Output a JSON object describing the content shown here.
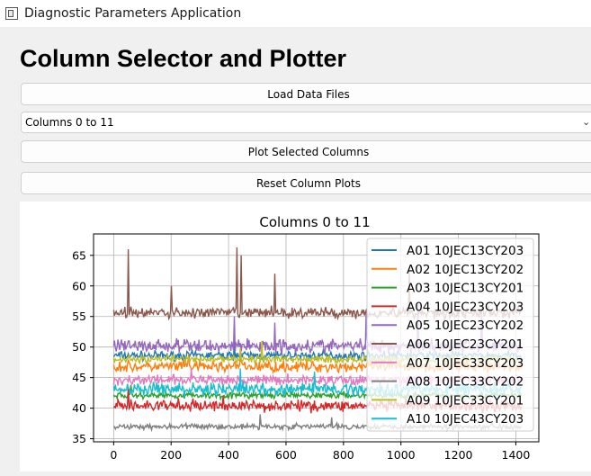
{
  "window": {
    "title": "Diagnostic Parameters Application",
    "icon": "app-window-icon"
  },
  "page": {
    "heading": "Column Selector and Plotter"
  },
  "buttons": {
    "load": "Load Data Files",
    "plot": "Plot Selected Columns",
    "reset": "Reset Column Plots"
  },
  "selector": {
    "value": "Columns 0 to 11",
    "icon": "chevron-down-icon"
  },
  "chart_data": {
    "type": "line",
    "title": "Columns 0 to 11",
    "xlabel": "",
    "ylabel": "",
    "xlim": [
      -70,
      1480
    ],
    "ylim": [
      34.5,
      68.5
    ],
    "x_ticks": [
      0,
      200,
      400,
      600,
      800,
      1000,
      1200,
      1400
    ],
    "y_ticks": [
      35,
      40,
      45,
      50,
      55,
      60,
      65
    ],
    "grid": true,
    "legend_position": "upper-right",
    "x_range": [
      0,
      1420
    ],
    "series": [
      {
        "name": "A01 10JEC13CY203",
        "color": "#1f77b4",
        "base": 48.6,
        "noise": 0.7,
        "spikes": [
          [
            420,
            51.5
          ]
        ]
      },
      {
        "name": "A02 10JEC13CY202",
        "color": "#ff7f0e",
        "base": 46.8,
        "noise": 0.9,
        "spikes": [
          [
            260,
            48.8
          ],
          [
            440,
            49.0
          ]
        ]
      },
      {
        "name": "A03 10JEC13CY201",
        "color": "#2ca02c",
        "base": 42.1,
        "noise": 0.5,
        "spikes": [
          [
            60,
            43.8
          ]
        ]
      },
      {
        "name": "A04 10JEC23CY203",
        "color": "#d62728",
        "base": 40.4,
        "noise": 0.9,
        "spikes": [
          [
            50,
            43.5
          ],
          [
            380,
            42.0
          ]
        ]
      },
      {
        "name": "A05 10JEC23CY202",
        "color": "#9467bd",
        "base": 50.2,
        "noise": 1.1,
        "spikes": [
          [
            420,
            55.0
          ],
          [
            560,
            54.0
          ],
          [
            880,
            56.0
          ],
          [
            1060,
            57.0
          ],
          [
            1280,
            56.5
          ]
        ]
      },
      {
        "name": "A06 10JEC23CY201",
        "color": "#8c564b",
        "base": 55.6,
        "noise": 0.9,
        "spikes": [
          [
            50,
            66.0
          ],
          [
            200,
            60.0
          ],
          [
            430,
            66.3
          ],
          [
            445,
            65.0
          ],
          [
            560,
            62.0
          ],
          [
            1030,
            62.5
          ]
        ]
      },
      {
        "name": "A07 10JEC33CY203",
        "color": "#e377c2",
        "base": 44.6,
        "noise": 0.8,
        "spikes": [
          [
            270,
            46.5
          ]
        ]
      },
      {
        "name": "A08 10JEC33CY202",
        "color": "#7f7f7f",
        "base": 37.0,
        "noise": 0.45,
        "spikes": [
          [
            510,
            39.0
          ],
          [
            760,
            38.5
          ]
        ]
      },
      {
        "name": "A09 10JEC33CY201",
        "color": "#bcbd22",
        "base": 48.0,
        "noise": 0.6,
        "spikes": [
          [
            515,
            51.0
          ],
          [
            440,
            49.8
          ]
        ]
      },
      {
        "name": "A10 10JEC43CY203",
        "color": "#17becf",
        "base": 43.1,
        "noise": 1.0,
        "spikes": [
          [
            440,
            46.5
          ],
          [
            700,
            46.0
          ]
        ]
      }
    ]
  }
}
